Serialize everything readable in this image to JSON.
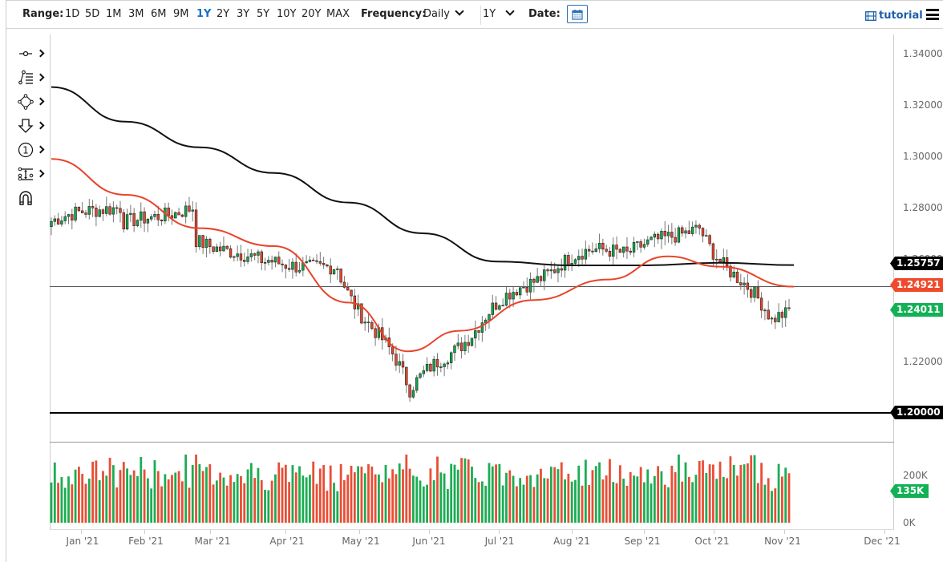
{
  "toolbar": {
    "range_label": "Range:",
    "ranges": [
      "1D",
      "5D",
      "1M",
      "3M",
      "6M",
      "9M",
      "1Y",
      "2Y",
      "3Y",
      "5Y",
      "10Y",
      "20Y",
      "MAX"
    ],
    "active_range": "1Y",
    "frequency_label": "Frequency:",
    "frequency_value": "Daily",
    "period_value": "1Y",
    "date_label": "Date:",
    "tutorial_label": "tutorial",
    "calendar_icon": "calendar-icon",
    "menu_icon": "hamburger-menu-icon"
  },
  "drawing_tools": [
    {
      "name": "line-tool-icon"
    },
    {
      "name": "fibonacci-tool-icon"
    },
    {
      "name": "shape-tool-icon"
    },
    {
      "name": "arrow-annotation-icon"
    },
    {
      "name": "numbered-marker-icon"
    },
    {
      "name": "measure-tool-icon"
    },
    {
      "name": "magnet-icon"
    }
  ],
  "colors": {
    "up": "#10a84a",
    "down": "#e8442a",
    "ma_fast": "#e8442a",
    "ma_slow": "#111111",
    "tag_black": "#000000",
    "tag_red": "#ef4a2c",
    "tag_green": "#12b155",
    "active_blue": "#1c6fc4"
  },
  "price_tags": {
    "ma_slow": "1.25757",
    "ma_fast": "1.24921",
    "last": "1.24011",
    "support": "1.20000",
    "volume_last": "135K"
  },
  "chart_data": {
    "type": "candlestick",
    "title": "",
    "frequency": "Daily",
    "range": "1Y",
    "xlabel": "",
    "ylabel": "",
    "y_ticks": [
      "1.34000",
      "1.32000",
      "1.30000",
      "1.28000",
      "1.26000",
      "1.24000",
      "1.22000",
      "1.20000"
    ],
    "ylim": [
      1.195,
      1.345
    ],
    "x_ticks": [
      "Jan '21",
      "Feb '21",
      "Mar '21",
      "Apr '21",
      "May '21",
      "Jun '21",
      "Jul '21",
      "Aug '21",
      "Sep '21",
      "Oct '21",
      "Nov '21",
      "Dec '21"
    ],
    "volume_ticks": [
      "200K",
      "0K"
    ],
    "horizontal_lines": [
      {
        "value": 1.2492,
        "label": "1.24921",
        "style": "thin-gray"
      },
      {
        "value": 1.2,
        "label": "1.20000",
        "style": "thick-black"
      }
    ],
    "moving_averages": [
      {
        "name": "slow MA (black)",
        "last": 1.25757,
        "points": [
          [
            0,
            1.327
          ],
          [
            0.1,
            1.3135
          ],
          [
            0.2,
            1.3035
          ],
          [
            0.3,
            1.2935
          ],
          [
            0.4,
            1.282
          ],
          [
            0.5,
            1.27
          ],
          [
            0.6,
            1.259
          ],
          [
            0.7,
            1.2575
          ],
          [
            0.8,
            1.2575
          ],
          [
            0.9,
            1.2585
          ],
          [
            1,
            1.2576
          ]
        ]
      },
      {
        "name": "fast MA (red)",
        "last": 1.24921,
        "points": [
          [
            0,
            1.299
          ],
          [
            0.1,
            1.285
          ],
          [
            0.2,
            1.272
          ],
          [
            0.3,
            1.265
          ],
          [
            0.4,
            1.243
          ],
          [
            0.48,
            1.224
          ],
          [
            0.55,
            1.232
          ],
          [
            0.65,
            1.244
          ],
          [
            0.75,
            1.252
          ],
          [
            0.83,
            1.261
          ],
          [
            0.9,
            1.257
          ],
          [
            1,
            1.2492
          ]
        ]
      }
    ],
    "candles_ohlc_weekly_summary": [
      {
        "period": "Jan '21",
        "open": 1.274,
        "high": 1.295,
        "low": 1.268,
        "close": 1.28
      },
      {
        "period": "Feb '21",
        "open": 1.274,
        "high": 1.288,
        "low": 1.263,
        "close": 1.28
      },
      {
        "period": "Mar '21",
        "open": 1.268,
        "high": 1.276,
        "low": 1.248,
        "close": 1.259
      },
      {
        "period": "Apr '21",
        "open": 1.26,
        "high": 1.265,
        "low": 1.243,
        "close": 1.257
      },
      {
        "period": "May '21",
        "open": 1.256,
        "high": 1.262,
        "low": 1.203,
        "close": 1.209
      },
      {
        "period": "Jun '21",
        "open": 1.209,
        "high": 1.242,
        "low": 1.2,
        "close": 1.236
      },
      {
        "period": "Jul '21",
        "open": 1.236,
        "high": 1.278,
        "low": 1.229,
        "close": 1.256
      },
      {
        "period": "Aug '21",
        "open": 1.256,
        "high": 1.294,
        "low": 1.25,
        "close": 1.262
      },
      {
        "period": "Sep '21",
        "open": 1.262,
        "high": 1.289,
        "low": 1.251,
        "close": 1.272
      },
      {
        "period": "Oct '21",
        "open": 1.272,
        "high": 1.275,
        "low": 1.229,
        "close": 1.236
      },
      {
        "period": "Nov '21",
        "open": 1.236,
        "high": 1.243,
        "low": 1.233,
        "close": 1.2401
      }
    ],
    "last_close": 1.24011,
    "last_volume": "135K"
  }
}
